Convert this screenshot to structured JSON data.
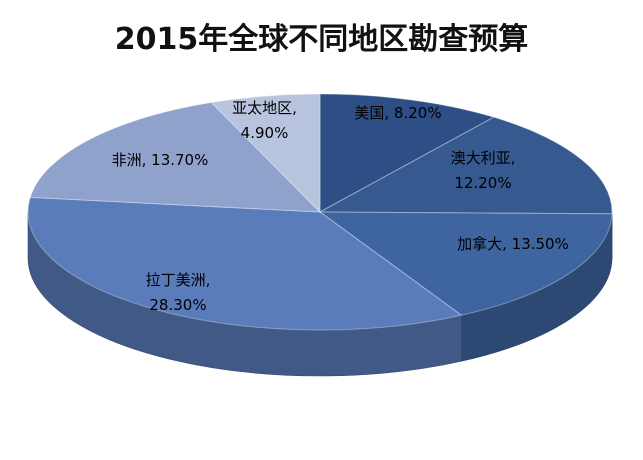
{
  "chart_data": {
    "type": "pie3d",
    "title": "2015年全球不同地区勘查预算",
    "values": [
      8.2,
      12.2,
      13.5,
      28.3,
      13.7,
      4.9
    ],
    "value_labels": [
      "美国, 8.20%",
      "澳大利亚, 12.20%",
      "加拿大, 13.50%",
      "拉丁美洲, 28.30%",
      "非洲, 13.70%",
      "亚太地区, 4.90%"
    ],
    "colors": [
      "#2d4f86",
      "#36598f",
      "#3f65a0",
      "#5a7cba",
      "#8ea2cc",
      "#b8c3de"
    ]
  }
}
